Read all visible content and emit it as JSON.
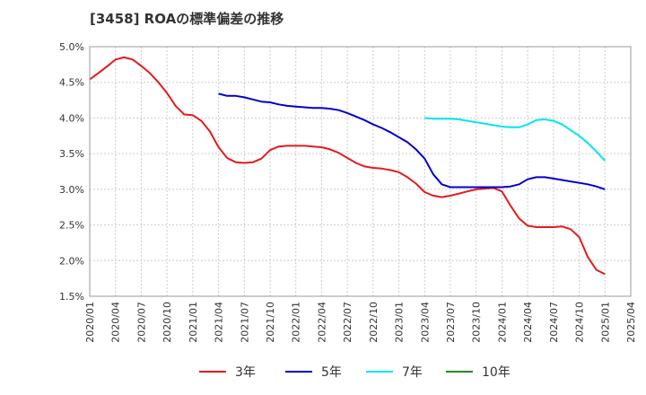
{
  "title": "[3458]  ROAの標準偏差の推移",
  "chart_data": {
    "type": "line",
    "title": "[3458]  ROAの標準偏差の推移",
    "xlabel": "",
    "ylabel": "",
    "ylim": [
      1.5,
      5.0
    ],
    "y_ticks": [
      "1.5%",
      "2.0%",
      "2.5%",
      "3.0%",
      "3.5%",
      "4.0%",
      "4.5%",
      "5.0%"
    ],
    "x_ticks": [
      "2020/01",
      "2020/04",
      "2020/07",
      "2020/10",
      "2021/01",
      "2021/04",
      "2021/07",
      "2021/10",
      "2022/01",
      "2022/04",
      "2022/07",
      "2022/10",
      "2023/01",
      "2023/04",
      "2023/07",
      "2023/10",
      "2024/01",
      "2024/04",
      "2024/07",
      "2024/10",
      "2025/01",
      "2025/04"
    ],
    "grid": true,
    "legend_position": "bottom",
    "series": [
      {
        "name": "3年",
        "color": "#e41a1c",
        "x": [
          "2020/01",
          "2020/02",
          "2020/03",
          "2020/04",
          "2020/05",
          "2020/06",
          "2020/07",
          "2020/08",
          "2020/09",
          "2020/10",
          "2020/11",
          "2020/12",
          "2021/01",
          "2021/02",
          "2021/03",
          "2021/04",
          "2021/05",
          "2021/06",
          "2021/07",
          "2021/08",
          "2021/09",
          "2021/10",
          "2021/11",
          "2021/12",
          "2022/01",
          "2022/02",
          "2022/03",
          "2022/04",
          "2022/05",
          "2022/06",
          "2022/07",
          "2022/08",
          "2022/09",
          "2022/10",
          "2022/11",
          "2022/12",
          "2023/01",
          "2023/02",
          "2023/03",
          "2023/04",
          "2023/05",
          "2023/06",
          "2023/07",
          "2023/08",
          "2023/09",
          "2023/10",
          "2023/11",
          "2023/12",
          "2024/01",
          "2024/02",
          "2024/03",
          "2024/04",
          "2024/05",
          "2024/06",
          "2024/07",
          "2024/08",
          "2024/09",
          "2024/10",
          "2024/11",
          "2024/12",
          "2025/01"
        ],
        "values": [
          4.54,
          4.63,
          4.72,
          4.82,
          4.85,
          4.82,
          4.73,
          4.63,
          4.5,
          4.35,
          4.17,
          4.05,
          4.04,
          3.96,
          3.81,
          3.59,
          3.44,
          3.38,
          3.37,
          3.38,
          3.43,
          3.55,
          3.6,
          3.61,
          3.61,
          3.61,
          3.6,
          3.59,
          3.56,
          3.51,
          3.44,
          3.37,
          3.32,
          3.3,
          3.29,
          3.27,
          3.24,
          3.17,
          3.08,
          2.96,
          2.91,
          2.89,
          2.91,
          2.94,
          2.97,
          3.0,
          3.01,
          3.02,
          2.97,
          2.77,
          2.59,
          2.49,
          2.47,
          2.47,
          2.47,
          2.48,
          2.44,
          2.33,
          2.05,
          1.87,
          1.81
        ]
      },
      {
        "name": "5年",
        "color": "#0000cc",
        "x": [
          "2021/04",
          "2021/05",
          "2021/06",
          "2021/07",
          "2021/08",
          "2021/09",
          "2021/10",
          "2021/11",
          "2021/12",
          "2022/01",
          "2022/02",
          "2022/03",
          "2022/04",
          "2022/05",
          "2022/06",
          "2022/07",
          "2022/08",
          "2022/09",
          "2022/10",
          "2022/11",
          "2022/12",
          "2023/01",
          "2023/02",
          "2023/03",
          "2023/04",
          "2023/05",
          "2023/06",
          "2023/07",
          "2023/08",
          "2023/09",
          "2023/10",
          "2023/11",
          "2023/12",
          "2024/01",
          "2024/02",
          "2024/03",
          "2024/04",
          "2024/05",
          "2024/06",
          "2024/07",
          "2024/08",
          "2024/09",
          "2024/10",
          "2024/11",
          "2024/12",
          "2025/01"
        ],
        "values": [
          4.34,
          4.31,
          4.31,
          4.29,
          4.26,
          4.23,
          4.22,
          4.19,
          4.17,
          4.16,
          4.15,
          4.14,
          4.14,
          4.13,
          4.11,
          4.07,
          4.02,
          3.97,
          3.91,
          3.86,
          3.8,
          3.73,
          3.66,
          3.56,
          3.43,
          3.21,
          3.07,
          3.03,
          3.03,
          3.03,
          3.03,
          3.03,
          3.03,
          3.03,
          3.04,
          3.07,
          3.14,
          3.17,
          3.17,
          3.15,
          3.13,
          3.11,
          3.09,
          3.07,
          3.04,
          3.0
        ]
      },
      {
        "name": "7年",
        "color": "#00e5ee",
        "x": [
          "2023/04",
          "2023/05",
          "2023/06",
          "2023/07",
          "2023/08",
          "2023/09",
          "2023/10",
          "2023/11",
          "2023/12",
          "2024/01",
          "2024/02",
          "2024/03",
          "2024/04",
          "2024/05",
          "2024/06",
          "2024/07",
          "2024/08",
          "2024/09",
          "2024/10",
          "2024/11",
          "2024/12",
          "2025/01"
        ],
        "values": [
          4.0,
          3.99,
          3.99,
          3.99,
          3.98,
          3.96,
          3.94,
          3.92,
          3.9,
          3.88,
          3.87,
          3.87,
          3.91,
          3.97,
          3.98,
          3.96,
          3.91,
          3.83,
          3.75,
          3.65,
          3.53,
          3.4
        ]
      },
      {
        "name": "10年",
        "color": "#228b22",
        "x": [],
        "values": []
      }
    ]
  }
}
